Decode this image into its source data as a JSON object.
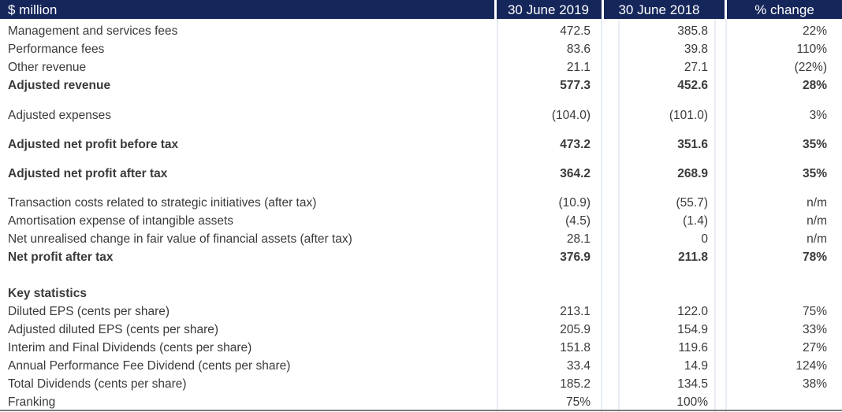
{
  "header": {
    "col0": "$ million",
    "col1": "30 June 2019",
    "col2": "30 June 2018",
    "col3": "% change"
  },
  "rows": [
    {
      "label": "Management and services fees",
      "v2019": "472.5",
      "v2018": "385.8",
      "change": "22%"
    },
    {
      "label": "Performance fees",
      "v2019": "83.6",
      "v2018": "39.8",
      "change": "110%"
    },
    {
      "label": "Other revenue",
      "v2019": "21.1",
      "v2018": "27.1",
      "change": "(22%)"
    },
    {
      "label": "Adjusted revenue",
      "v2019": "577.3",
      "v2018": "452.6",
      "change": "28%"
    },
    {
      "label": "Adjusted expenses",
      "v2019": "(104.0)",
      "v2018": "(101.0)",
      "change": "3%"
    },
    {
      "label": "Adjusted net profit before tax",
      "v2019": "473.2",
      "v2018": "351.6",
      "change": "35%"
    },
    {
      "label": "Adjusted net profit after tax",
      "v2019": "364.2",
      "v2018": "268.9",
      "change": "35%"
    },
    {
      "label": "Transaction costs related to strategic initiatives (after tax)",
      "v2019": "(10.9)",
      "v2018": "(55.7)",
      "change": "n/m"
    },
    {
      "label": "Amortisation expense of intangible assets",
      "v2019": "(4.5)",
      "v2018": "(1.4)",
      "change": "n/m"
    },
    {
      "label": "Net unrealised change in fair value of financial assets (after tax)",
      "v2019": "28.1",
      "v2018": "0",
      "change": "n/m"
    },
    {
      "label": "Net profit after tax",
      "v2019": "376.9",
      "v2018": "211.8",
      "change": "78%"
    },
    {
      "label": "Key statistics",
      "v2019": "",
      "v2018": "",
      "change": ""
    },
    {
      "label": "Diluted EPS (cents per share)",
      "v2019": "213.1",
      "v2018": "122.0",
      "change": "75%"
    },
    {
      "label": "Adjusted diluted EPS (cents per share)",
      "v2019": "205.9",
      "v2018": "154.9",
      "change": "33%"
    },
    {
      "label": "Interim and Final Dividends (cents per share)",
      "v2019": "151.8",
      "v2018": "119.6",
      "change": "27%"
    },
    {
      "label": "Annual Performance Fee Dividend (cents per share)",
      "v2019": "33.4",
      "v2018": "14.9",
      "change": "124%"
    },
    {
      "label": "Total Dividends (cents per share)",
      "v2019": "185.2",
      "v2018": "134.5",
      "change": "38%"
    },
    {
      "label": "Franking",
      "v2019": "75%",
      "v2018": "100%",
      "change": ""
    }
  ],
  "colors": {
    "header_bg": "#15265a",
    "text": "#3a3a3a",
    "lane": "#e9edf4"
  }
}
